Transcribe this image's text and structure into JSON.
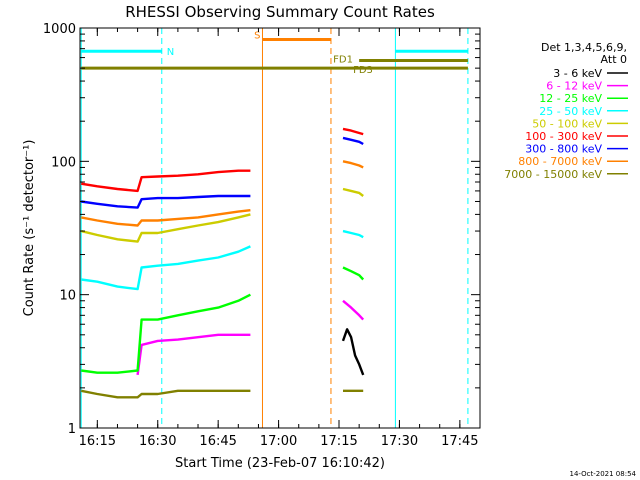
{
  "chart_data": {
    "type": "line",
    "title": "RHESSI Observing Summary Count Rates",
    "xlabel": "Start Time (23-Feb-07 16:10:42)",
    "ylabel": "Count Rate (s⁻¹ detector⁻¹)",
    "y_scale": "log",
    "ylim": [
      1,
      1000
    ],
    "xlim": [
      "16:10:42",
      "17:50"
    ],
    "x_ticks": [
      "16:15",
      "16:30",
      "16:45",
      "17:00",
      "17:15",
      "17:30",
      "17:45"
    ],
    "y_ticks": [
      "1",
      "10",
      "100",
      "1000"
    ],
    "legend_header": [
      "Det 1,3,4,5,6,9,",
      "Att 0"
    ],
    "legend_position": "right",
    "series": [
      {
        "name": "3 - 6 keV",
        "color": "#000000",
        "points": [
          [
            "17:16",
            4.5
          ],
          [
            "17:17",
            5.5
          ],
          [
            "17:18",
            4.8
          ],
          [
            "17:19",
            3.5
          ],
          [
            "17:20",
            3.0
          ],
          [
            "17:21",
            2.5
          ]
        ]
      },
      {
        "name": "6 - 12 keV",
        "color": "#ff00ff",
        "points": [
          [
            "16:25",
            2.5
          ],
          [
            "16:26",
            4.2
          ],
          [
            "16:30",
            4.5
          ],
          [
            "16:35",
            4.6
          ],
          [
            "16:40",
            4.8
          ],
          [
            "16:45",
            5.0
          ],
          [
            "16:50",
            5.0
          ],
          [
            "16:53",
            5.0
          ],
          [
            "17:16",
            9.0
          ],
          [
            "17:18",
            8.0
          ],
          [
            "17:20",
            7.0
          ],
          [
            "17:21",
            6.5
          ]
        ]
      },
      {
        "name": "12 - 25 keV",
        "color": "#00ff00",
        "points": [
          [
            "16:11",
            2.7
          ],
          [
            "16:15",
            2.6
          ],
          [
            "16:20",
            2.6
          ],
          [
            "16:25",
            2.7
          ],
          [
            "16:26",
            6.5
          ],
          [
            "16:30",
            6.5
          ],
          [
            "16:35",
            7.0
          ],
          [
            "16:40",
            7.5
          ],
          [
            "16:45",
            8.0
          ],
          [
            "16:50",
            9.0
          ],
          [
            "16:53",
            10.0
          ],
          [
            "17:16",
            16.0
          ],
          [
            "17:18",
            15.0
          ],
          [
            "17:20",
            14.0
          ],
          [
            "17:21",
            13.0
          ]
        ]
      },
      {
        "name": "25 - 50 keV",
        "color": "#00ffff",
        "points": [
          [
            "16:11",
            13.0
          ],
          [
            "16:15",
            12.5
          ],
          [
            "16:20",
            11.5
          ],
          [
            "16:25",
            11.0
          ],
          [
            "16:26",
            16.0
          ],
          [
            "16:30",
            16.5
          ],
          [
            "16:35",
            17.0
          ],
          [
            "16:40",
            18.0
          ],
          [
            "16:45",
            19.0
          ],
          [
            "16:50",
            21.0
          ],
          [
            "16:53",
            23.0
          ],
          [
            "17:16",
            30.0
          ],
          [
            "17:18",
            29.0
          ],
          [
            "17:20",
            28.0
          ],
          [
            "17:21",
            27.0
          ]
        ]
      },
      {
        "name": "50 - 100 keV",
        "color": "#cccc00",
        "points": [
          [
            "16:11",
            30.0
          ],
          [
            "16:15",
            28.0
          ],
          [
            "16:20",
            26.0
          ],
          [
            "16:25",
            25.0
          ],
          [
            "16:26",
            29.0
          ],
          [
            "16:30",
            29.0
          ],
          [
            "16:35",
            31.0
          ],
          [
            "16:40",
            33.0
          ],
          [
            "16:45",
            35.0
          ],
          [
            "16:50",
            38.0
          ],
          [
            "16:53",
            40.0
          ],
          [
            "17:16",
            62.0
          ],
          [
            "17:18",
            60.0
          ],
          [
            "17:20",
            58.0
          ],
          [
            "17:21",
            55.0
          ]
        ]
      },
      {
        "name": "100 - 300 keV",
        "color": "#ff0000",
        "points": [
          [
            "16:11",
            68.0
          ],
          [
            "16:15",
            65.0
          ],
          [
            "16:20",
            62.0
          ],
          [
            "16:25",
            60.0
          ],
          [
            "16:26",
            76.0
          ],
          [
            "16:30",
            77.0
          ],
          [
            "16:35",
            78.0
          ],
          [
            "16:40",
            80.0
          ],
          [
            "16:45",
            83.0
          ],
          [
            "16:50",
            85.0
          ],
          [
            "16:53",
            85.0
          ],
          [
            "17:16",
            175.0
          ],
          [
            "17:18",
            170.0
          ],
          [
            "17:20",
            163.0
          ],
          [
            "17:21",
            160.0
          ]
        ]
      },
      {
        "name": "300 - 800 keV",
        "color": "#0000ff",
        "points": [
          [
            "16:11",
            50.0
          ],
          [
            "16:15",
            48.0
          ],
          [
            "16:20",
            46.0
          ],
          [
            "16:25",
            45.0
          ],
          [
            "16:26",
            52.0
          ],
          [
            "16:30",
            53.0
          ],
          [
            "16:35",
            53.0
          ],
          [
            "16:40",
            54.0
          ],
          [
            "16:45",
            55.0
          ],
          [
            "16:50",
            55.0
          ],
          [
            "16:53",
            55.0
          ],
          [
            "17:16",
            150.0
          ],
          [
            "17:18",
            145.0
          ],
          [
            "17:20",
            140.0
          ],
          [
            "17:21",
            135.0
          ]
        ]
      },
      {
        "name": "800 - 7000 keV",
        "color": "#ff8000",
        "points": [
          [
            "16:11",
            38.0
          ],
          [
            "16:15",
            36.0
          ],
          [
            "16:20",
            34.0
          ],
          [
            "16:25",
            33.0
          ],
          [
            "16:26",
            36.0
          ],
          [
            "16:30",
            36.0
          ],
          [
            "16:35",
            37.0
          ],
          [
            "16:40",
            38.0
          ],
          [
            "16:45",
            40.0
          ],
          [
            "16:50",
            42.0
          ],
          [
            "16:53",
            43.0
          ],
          [
            "17:16",
            100.0
          ],
          [
            "17:18",
            97.0
          ],
          [
            "17:20",
            93.0
          ],
          [
            "17:21",
            90.0
          ]
        ]
      },
      {
        "name": "7000 - 15000 keV",
        "color": "#808000",
        "points": [
          [
            "16:11",
            1.9
          ],
          [
            "16:15",
            1.8
          ],
          [
            "16:20",
            1.7
          ],
          [
            "16:25",
            1.7
          ],
          [
            "16:26",
            1.8
          ],
          [
            "16:30",
            1.8
          ],
          [
            "16:35",
            1.9
          ],
          [
            "16:40",
            1.9
          ],
          [
            "16:45",
            1.9
          ],
          [
            "16:50",
            1.9
          ],
          [
            "16:53",
            1.9
          ],
          [
            "17:16",
            1.9
          ],
          [
            "17:18",
            1.9
          ],
          [
            "17:21",
            1.9
          ]
        ]
      }
    ],
    "flag_bars": [
      {
        "label": "N",
        "color": "#00ffff",
        "y": 670,
        "start": "16:11",
        "end": "16:31"
      },
      {
        "label": "",
        "color": "#00ffff",
        "y": 670,
        "start": "17:29",
        "end": "17:47"
      },
      {
        "label": "S",
        "color": "#ff8000",
        "y": 820,
        "start": "16:56",
        "end": "17:13"
      },
      {
        "label": "FD1",
        "color": "#808000",
        "y": 570,
        "start": "17:20",
        "end": "17:47"
      },
      {
        "label": "FD3",
        "color": "#808000",
        "y": 500,
        "start": "16:11",
        "end": "17:47"
      }
    ],
    "flag_marks": [
      {
        "kind": "solid",
        "color": "#00ffff",
        "time": "16:11"
      },
      {
        "kind": "dashed",
        "color": "#00ffff",
        "time": "16:31"
      },
      {
        "kind": "solid",
        "color": "#00ffff",
        "time": "17:29"
      },
      {
        "kind": "dashed",
        "color": "#00ffff",
        "time": "17:47"
      },
      {
        "kind": "solid",
        "color": "#ff8000",
        "time": "16:56"
      },
      {
        "kind": "dashed",
        "color": "#ff8000",
        "time": "17:13"
      }
    ],
    "timestamp": "14-Oct-2021 08:54"
  }
}
